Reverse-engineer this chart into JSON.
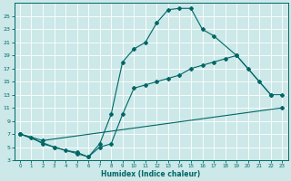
{
  "xlabel": "Humidex (Indice chaleur)",
  "bg_color": "#cce8e8",
  "grid_color": "#ffffff",
  "line_color": "#006666",
  "xlim": [
    -0.5,
    23.5
  ],
  "ylim": [
    3,
    27
  ],
  "yticks": [
    3,
    5,
    7,
    9,
    11,
    13,
    15,
    17,
    19,
    21,
    23,
    25
  ],
  "xticks": [
    0,
    1,
    2,
    3,
    4,
    5,
    6,
    7,
    8,
    9,
    10,
    11,
    12,
    13,
    14,
    15,
    16,
    17,
    18,
    19,
    20,
    21,
    22,
    23
  ],
  "line1_x": [
    0,
    1,
    2,
    3,
    4,
    5,
    6,
    7,
    8,
    9,
    10,
    11,
    12,
    13,
    14,
    15,
    16,
    17,
    19,
    22
  ],
  "line1_y": [
    7,
    6.5,
    5.5,
    5,
    4.5,
    4.2,
    3.5,
    5.5,
    10,
    18,
    20,
    21,
    24,
    26,
    26.2,
    26.2,
    23,
    22,
    19,
    13
  ],
  "line2_x": [
    0,
    2,
    23
  ],
  "line2_y": [
    7,
    6,
    11
  ],
  "line3_x": [
    0,
    3,
    5,
    6,
    7,
    8,
    9,
    10,
    11,
    12,
    13,
    14,
    15,
    16,
    17,
    18,
    19,
    20,
    21,
    22,
    23
  ],
  "line3_y": [
    7,
    5,
    4,
    3.5,
    5,
    5.5,
    10,
    14,
    14.5,
    15,
    15.5,
    16,
    17,
    17.5,
    18,
    18.5,
    19,
    17,
    15,
    13,
    13
  ]
}
